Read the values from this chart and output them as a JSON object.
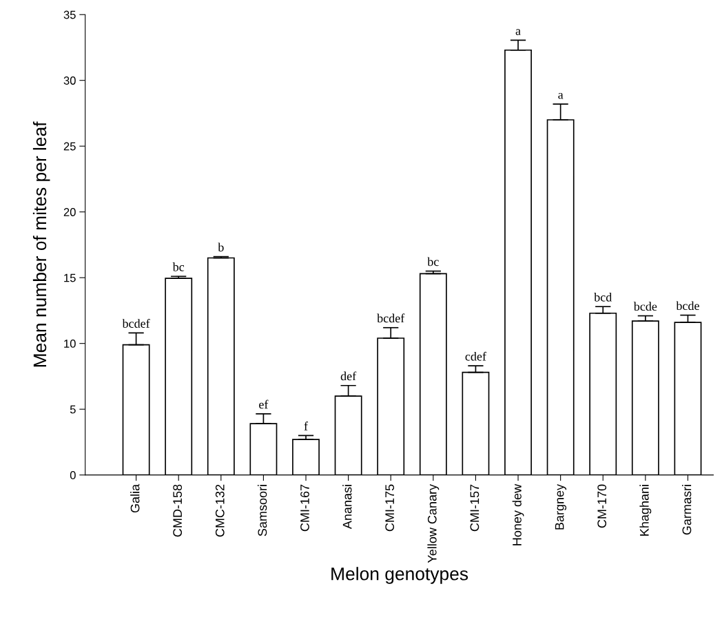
{
  "chart_data": {
    "type": "bar",
    "xlabel": "Melon genotypes",
    "ylabel": "Mean number of mites per leaf",
    "categories": [
      "Galia",
      "CMD-158",
      "CMC-132",
      "Samsoori",
      "CMI-167",
      "Ananasi",
      "CMI-175",
      "Yellow Canary",
      "CMI-157",
      "Honey dew",
      "Bargney",
      "CM-170",
      "Khaghani",
      "Garmasri"
    ],
    "values": [
      9.9,
      14.95,
      16.5,
      3.9,
      2.7,
      6.0,
      10.4,
      15.3,
      7.8,
      32.3,
      27.0,
      12.3,
      11.7,
      11.6
    ],
    "errors": [
      [
        9.9,
        10.8
      ],
      [
        14.95,
        15.1
      ],
      [
        16.5,
        16.6
      ],
      [
        3.9,
        4.65
      ],
      [
        2.7,
        3.0
      ],
      [
        6.0,
        6.8
      ],
      [
        10.4,
        11.2
      ],
      [
        15.3,
        15.5
      ],
      [
        7.8,
        8.3
      ],
      [
        32.3,
        33.05
      ],
      [
        27.0,
        28.2
      ],
      [
        12.3,
        12.8
      ],
      [
        11.7,
        12.1
      ],
      [
        11.6,
        12.15
      ]
    ],
    "value_labels": [
      "bcdef",
      "bc",
      "b",
      "ef",
      "f",
      "def",
      "bcdef",
      "bc",
      "cdef",
      "a",
      "a",
      "bcd",
      "bcde",
      "bcde"
    ],
    "color": "#ffffff",
    "ylim": [
      0,
      35
    ],
    "yticks": [
      0,
      5,
      10,
      15,
      20,
      25,
      30,
      35
    ],
    "grid": false,
    "legend": false
  }
}
